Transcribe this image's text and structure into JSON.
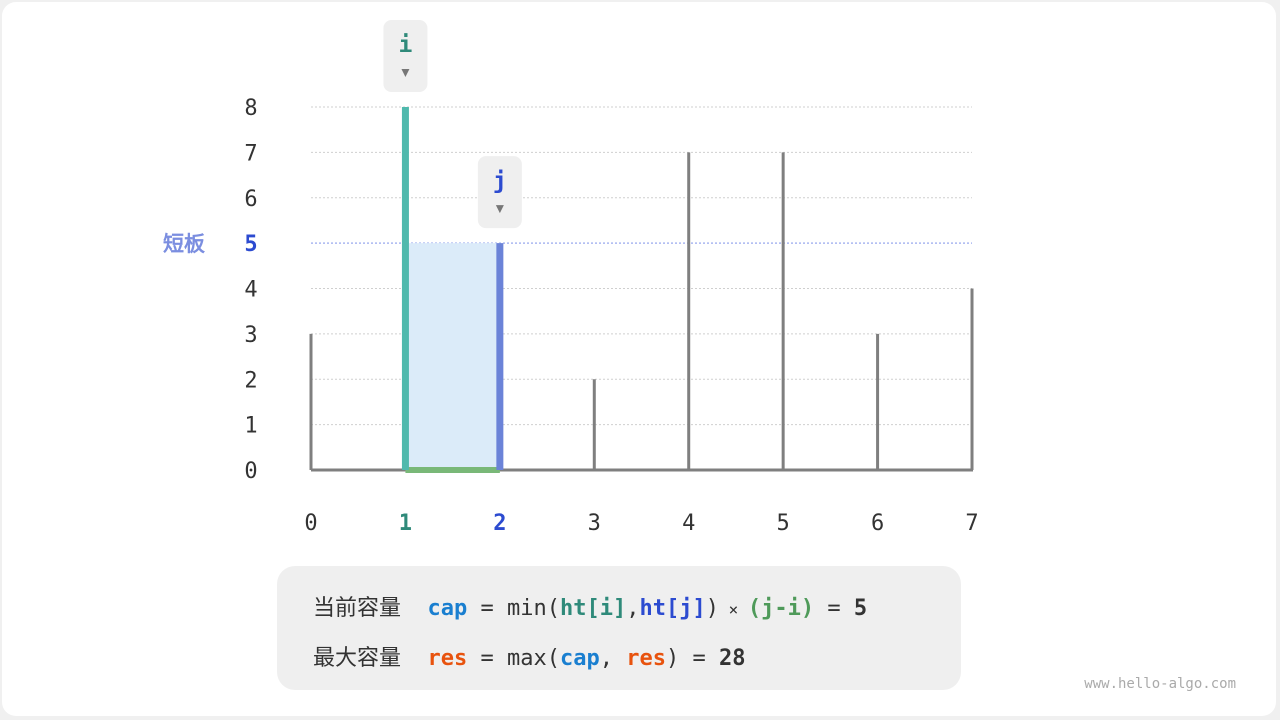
{
  "chart_data": {
    "type": "bar",
    "categories": [
      "0",
      "1",
      "2",
      "3",
      "4",
      "5",
      "6",
      "7"
    ],
    "values": [
      3,
      8,
      5,
      2,
      7,
      7,
      3,
      4
    ],
    "y_ticks": [
      "0",
      "1",
      "2",
      "3",
      "4",
      "5",
      "6",
      "7",
      "8"
    ],
    "ylim": [
      0,
      8
    ],
    "grid": true,
    "i_index": 1,
    "j_index": 2,
    "short_board_value": 5,
    "short_board_label": "短板",
    "pointer_i_label": "i",
    "pointer_j_label": "j",
    "colors": {
      "i": "#4fb9ad",
      "j": "#6b83d8",
      "area": "#dbebf9",
      "width": "#79b878",
      "bar": "#7f7f7f",
      "short_label": "#7b8ee0",
      "j_text": "#2c4bd0",
      "i_text": "#2f8a7a"
    }
  },
  "formula": {
    "line1": {
      "label": "当前容量",
      "cap": "cap",
      "eq": " = min(",
      "ht_i": "ht[i]",
      "comma": ",",
      "ht_j": "ht[j]",
      "close": ")",
      "times": " × ",
      "ji": "(j-i)",
      "eq2": " = ",
      "result": "5"
    },
    "line2": {
      "label": "最大容量",
      "res": "res",
      "eq": " = max(",
      "cap": "cap",
      "comma": ", ",
      "res2": "res",
      "close": ")",
      "eq2": " = ",
      "result": "28"
    }
  },
  "watermark": "www.hello-algo.com"
}
